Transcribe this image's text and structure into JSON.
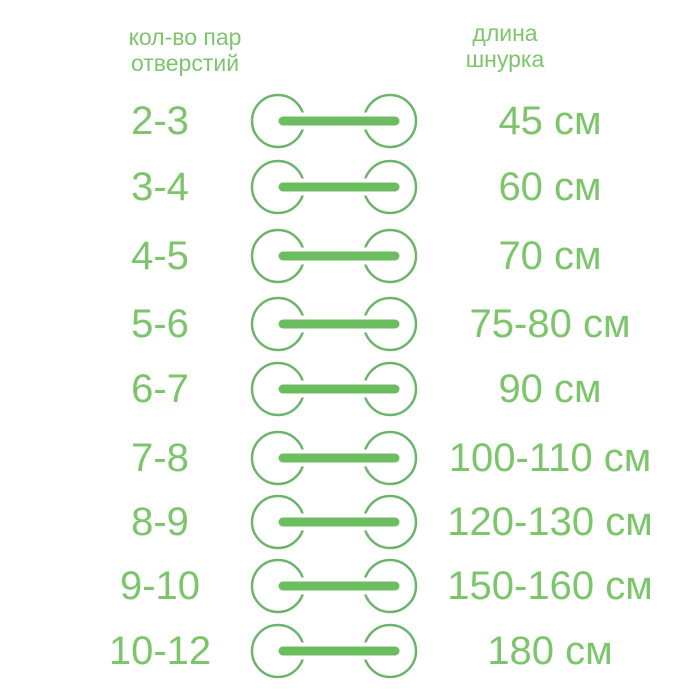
{
  "headers": {
    "left": [
      "кол-во пар",
      "отверстий"
    ],
    "right": [
      "длина",
      "шнурка"
    ]
  },
  "colors": {
    "text": "#7cc56b",
    "circle": "#6db46a",
    "lace": "#6cbd60"
  },
  "rows": [
    {
      "holes": "2-3",
      "length": "45 см"
    },
    {
      "holes": "3-4",
      "length": "60 см"
    },
    {
      "holes": "4-5",
      "length": "70 см"
    },
    {
      "holes": "5-6",
      "length": "75-80 см"
    },
    {
      "holes": "6-7",
      "length": "90 см"
    },
    {
      "holes": "7-8",
      "length": "100-110 см"
    },
    {
      "holes": "8-9",
      "length": "120-130 см"
    },
    {
      "holes": "9-10",
      "length": "150-160 см"
    },
    {
      "holes": "10-12",
      "length": "180 см"
    }
  ]
}
